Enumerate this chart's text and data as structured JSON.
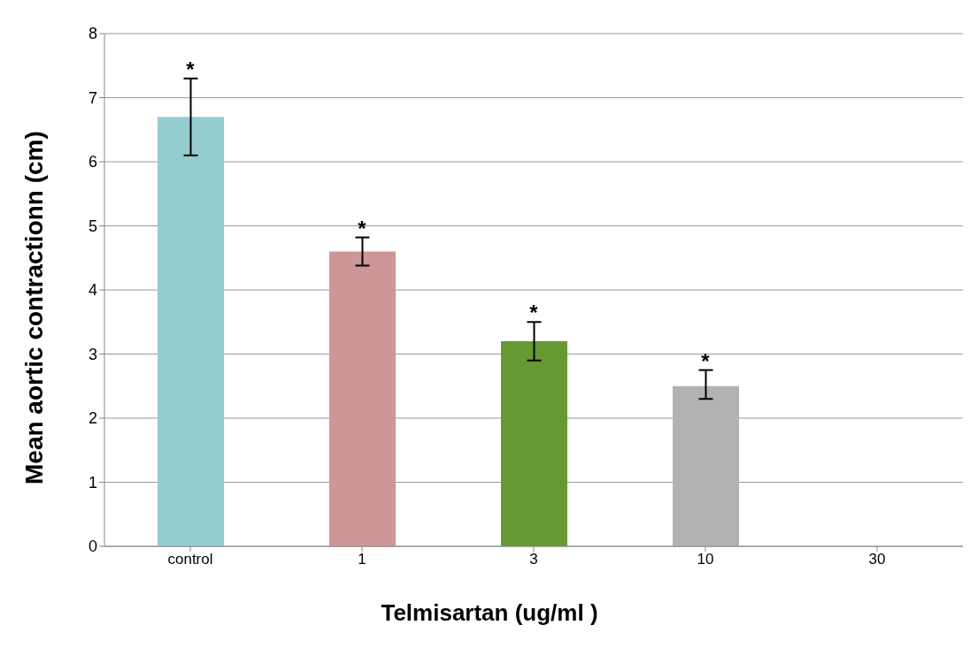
{
  "chart_data": {
    "type": "bar",
    "xlabel": "Telmisartan (ug/ml )",
    "ylabel": "Mean aortic contractionn (cm)",
    "categories": [
      "control",
      "1",
      "3",
      "10",
      "30"
    ],
    "values": [
      6.7,
      4.6,
      3.2,
      2.5,
      null
    ],
    "colors": [
      "#93cdd0",
      "#cd9697",
      "#669933",
      "#b2b2b2",
      "#b2b2b2"
    ],
    "errors": [
      [
        6.1,
        7.3
      ],
      [
        4.38,
        4.82
      ],
      [
        2.9,
        3.5
      ],
      [
        2.3,
        2.75
      ],
      null
    ],
    "ylim": [
      0,
      8
    ],
    "yticks": [
      0,
      1,
      2,
      3,
      4,
      5,
      6,
      7,
      8
    ],
    "grid": "y",
    "annotations": [
      "*",
      "*",
      "*",
      "*"
    ]
  }
}
